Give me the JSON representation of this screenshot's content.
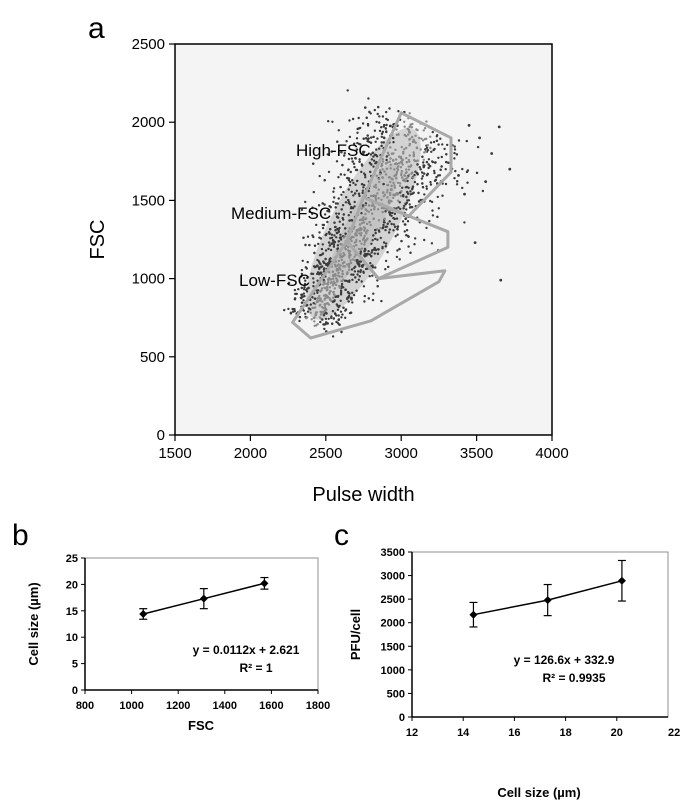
{
  "chart_data": [
    {
      "panel": "a",
      "type": "scatter",
      "xlabel": "Pulse width",
      "ylabel": "FSC",
      "xlim": [
        1500,
        4000
      ],
      "ylim": [
        0,
        2500
      ],
      "xticks": [
        1500,
        2000,
        2500,
        3000,
        3500,
        4000
      ],
      "yticks": [
        0,
        500,
        1000,
        1500,
        2000,
        2500
      ],
      "grid": false,
      "point_cloud": {
        "core_axis_start": [
          2450,
          800
        ],
        "core_axis_end": [
          3050,
          1900
        ],
        "x_range": [
          2300,
          3720
        ],
        "y_range": [
          650,
          2000
        ]
      },
      "outliers": [
        [
          3450,
          1980
        ],
        [
          3520,
          1900
        ],
        [
          3650,
          1970
        ],
        [
          3600,
          1800
        ],
        [
          3720,
          1700
        ],
        [
          3560,
          1620
        ],
        [
          3490,
          1230
        ],
        [
          3660,
          990
        ],
        [
          3380,
          1660
        ],
        [
          3420,
          1540
        ]
      ],
      "gates": [
        {
          "label": "High-FSC",
          "polygon": [
            [
              2750,
              1520
            ],
            [
              3000,
              2060
            ],
            [
              3330,
              1900
            ],
            [
              3330,
              1680
            ],
            [
              3050,
              1400
            ]
          ]
        },
        {
          "label": "Medium-FSC",
          "polygon": [
            [
              2640,
              1240
            ],
            [
              2750,
              1520
            ],
            [
              3050,
              1400
            ],
            [
              3310,
              1300
            ],
            [
              3310,
              1200
            ],
            [
              2850,
              1000
            ]
          ]
        },
        {
          "label": "Low-FSC",
          "polygon": [
            [
              2280,
              720
            ],
            [
              2640,
              1240
            ],
            [
              2850,
              1000
            ],
            [
              3290,
              1050
            ],
            [
              3250,
              980
            ],
            [
              2800,
              730
            ],
            [
              2400,
              620
            ]
          ]
        }
      ]
    },
    {
      "panel": "b",
      "type": "line",
      "xlabel": "FSC",
      "ylabel": "Cell size (µm)",
      "xlim": [
        800,
        1800
      ],
      "ylim": [
        0,
        25
      ],
      "xticks": [
        800,
        1000,
        1200,
        1400,
        1600,
        1800
      ],
      "yticks": [
        0,
        5,
        10,
        15,
        20,
        25
      ],
      "grid": false,
      "x": [
        1050,
        1310,
        1570
      ],
      "y": [
        14.4,
        17.3,
        20.2
      ],
      "yerr": [
        1.0,
        1.9,
        1.1
      ],
      "fit_equation": "y = 0.0112x + 2.621",
      "r2_text": "R² = 1"
    },
    {
      "panel": "c",
      "type": "line",
      "xlabel": "Cell size (µm)",
      "ylabel": "PFU/cell",
      "xlim": [
        12,
        22
      ],
      "ylim": [
        0,
        3500
      ],
      "xticks": [
        12,
        14,
        16,
        18,
        20
      ],
      "last_xtick_partial": "22",
      "yticks": [
        0,
        500,
        1000,
        1500,
        2000,
        2500,
        3000,
        3500
      ],
      "grid": false,
      "x": [
        14.4,
        17.3,
        20.2
      ],
      "y": [
        2170,
        2480,
        2890
      ],
      "yerr": [
        260,
        330,
        430
      ],
      "fit_equation": "y = 126.6x + 332.9",
      "r2_text": "R² = 0.9935"
    }
  ],
  "colors": {
    "axis": "#000000",
    "gate": "#a9a9a9",
    "plot_bg": "#f4f4f4",
    "dots": "#3a3a3a"
  }
}
